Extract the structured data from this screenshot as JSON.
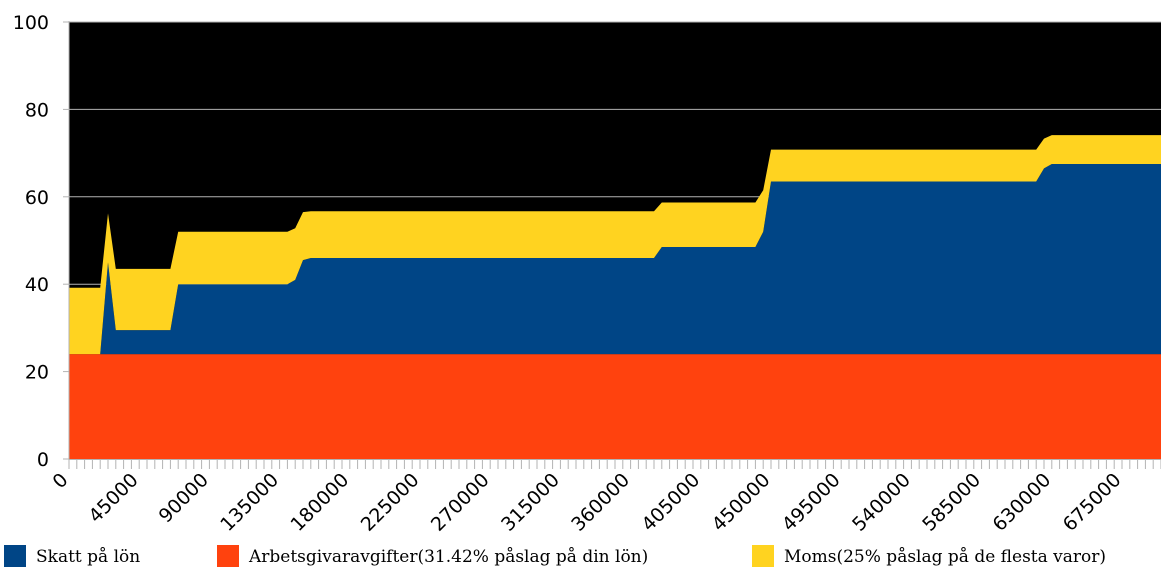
{
  "chart_data": {
    "type": "area",
    "stacked": true,
    "title": "",
    "xlabel": "",
    "ylabel": "",
    "ylim": [
      0,
      100
    ],
    "xlim": [
      0,
      700000
    ],
    "yticks": [
      0,
      20,
      40,
      60,
      80,
      100
    ],
    "xticks": [
      0,
      45000,
      90000,
      135000,
      180000,
      225000,
      270000,
      315000,
      360000,
      405000,
      450000,
      495000,
      540000,
      585000,
      630000,
      675000
    ],
    "x_minor_step": 5000,
    "grid": true,
    "plot_background": "#000000",
    "grid_color": "#b3b3b3",
    "legend_position": "bottom",
    "x": [
      0,
      5000,
      10000,
      15000,
      20000,
      25000,
      30000,
      35000,
      40000,
      45000,
      50000,
      55000,
      60000,
      65000,
      70000,
      75000,
      80000,
      85000,
      90000,
      95000,
      100000,
      105000,
      110000,
      115000,
      120000,
      125000,
      130000,
      135000,
      140000,
      145000,
      150000,
      155000,
      160000,
      165000,
      170000,
      175000,
      180000,
      185000,
      190000,
      195000,
      200000,
      205000,
      210000,
      215000,
      220000,
      225000,
      230000,
      235000,
      240000,
      245000,
      250000,
      255000,
      260000,
      265000,
      270000,
      275000,
      280000,
      285000,
      290000,
      295000,
      300000,
      305000,
      310000,
      315000,
      320000,
      325000,
      330000,
      335000,
      340000,
      345000,
      350000,
      355000,
      360000,
      365000,
      370000,
      375000,
      380000,
      385000,
      390000,
      395000,
      400000,
      405000,
      410000,
      415000,
      420000,
      425000,
      430000,
      435000,
      440000,
      445000,
      450000,
      455000,
      460000,
      465000,
      470000,
      475000,
      480000,
      485000,
      490000,
      495000,
      500000,
      505000,
      510000,
      515000,
      520000,
      525000,
      530000,
      535000,
      540000,
      545000,
      550000,
      555000,
      560000,
      565000,
      570000,
      575000,
      580000,
      585000,
      590000,
      595000,
      600000,
      605000,
      610000,
      615000,
      620000,
      625000,
      630000,
      635000,
      640000,
      645000,
      650000,
      655000,
      660000,
      665000,
      670000,
      675000,
      680000,
      685000,
      690000,
      695000,
      700000
    ],
    "series": [
      {
        "name": "Arbetsgivaravgifter(31.42% påslag på din lön)",
        "color": "#ff420e",
        "values": [
          24,
          24,
          24,
          24,
          24,
          24,
          24,
          24,
          24,
          24,
          24,
          24,
          24,
          24,
          24,
          24,
          24,
          24,
          24,
          24,
          24,
          24,
          24,
          24,
          24,
          24,
          24,
          24,
          24,
          24,
          24,
          24,
          24,
          24,
          24,
          24,
          24,
          24,
          24,
          24,
          24,
          24,
          24,
          24,
          24,
          24,
          24,
          24,
          24,
          24,
          24,
          24,
          24,
          24,
          24,
          24,
          24,
          24,
          24,
          24,
          24,
          24,
          24,
          24,
          24,
          24,
          24,
          24,
          24,
          24,
          24,
          24,
          24,
          24,
          24,
          24,
          24,
          24,
          24,
          24,
          24,
          24,
          24,
          24,
          24,
          24,
          24,
          24,
          24,
          24,
          24,
          24,
          24,
          24,
          24,
          24,
          24,
          24,
          24,
          24,
          24,
          24,
          24,
          24,
          24,
          24,
          24,
          24,
          24,
          24,
          24,
          24,
          24,
          24,
          24,
          24,
          24,
          24,
          24,
          24,
          24,
          24,
          24,
          24,
          24,
          24,
          24,
          24,
          24,
          24,
          24,
          24,
          24,
          24,
          24,
          24,
          24,
          24,
          24,
          24,
          24
        ]
      },
      {
        "name": "Skatt på lön",
        "color": "#004586",
        "values": [
          0,
          0,
          0,
          0,
          0,
          21,
          5.5,
          5.5,
          5.5,
          5.5,
          5.5,
          5.5,
          5.5,
          5.5,
          16,
          16,
          16,
          16,
          16,
          16,
          16,
          16,
          16,
          16,
          16,
          16,
          16,
          16,
          16,
          17,
          21.5,
          22,
          22,
          22,
          22,
          22,
          22,
          22,
          22,
          22,
          22,
          22,
          22,
          22,
          22,
          22,
          22,
          22,
          22,
          22,
          22,
          22,
          22,
          22,
          22,
          22,
          22,
          22,
          22,
          22,
          22,
          22,
          22,
          22,
          22,
          22,
          22,
          22,
          22,
          22,
          22,
          22,
          22,
          22,
          22,
          22,
          24.5,
          24.5,
          24.5,
          24.5,
          24.5,
          24.5,
          24.5,
          24.5,
          24.5,
          24.5,
          24.5,
          24.5,
          24.5,
          28,
          39.5,
          39.5,
          39.5,
          39.5,
          39.5,
          39.5,
          39.5,
          39.5,
          39.5,
          39.5,
          39.5,
          39.5,
          39.5,
          39.5,
          39.5,
          39.5,
          39.5,
          39.5,
          39.5,
          39.5,
          39.5,
          39.5,
          39.5,
          39.5,
          39.5,
          39.5,
          39.5,
          39.5,
          39.5,
          39.5,
          39.5,
          39.5,
          39.5,
          39.5,
          39.5,
          42.5,
          43.5,
          43.5,
          43.5,
          43.5,
          43.5,
          43.5,
          43.5,
          43.5,
          43.5,
          43.5,
          43.5,
          43.5,
          43.5,
          43.5,
          43.5
        ]
      },
      {
        "name": "Moms(25% påslag på de flesta varor)",
        "color": "#ffd320",
        "values": [
          15.2,
          15.2,
          15.2,
          15.2,
          15.2,
          11.2,
          14,
          14,
          14,
          14,
          14,
          14,
          14,
          14,
          12,
          12,
          12,
          12,
          12,
          12,
          12,
          12,
          12,
          12,
          12,
          12,
          12,
          12,
          12,
          11.8,
          11,
          10.7,
          10.7,
          10.7,
          10.7,
          10.7,
          10.7,
          10.7,
          10.7,
          10.7,
          10.7,
          10.7,
          10.7,
          10.7,
          10.7,
          10.7,
          10.7,
          10.7,
          10.7,
          10.7,
          10.7,
          10.7,
          10.7,
          10.7,
          10.7,
          10.7,
          10.7,
          10.7,
          10.7,
          10.7,
          10.7,
          10.7,
          10.7,
          10.7,
          10.7,
          10.7,
          10.7,
          10.7,
          10.7,
          10.7,
          10.7,
          10.7,
          10.7,
          10.7,
          10.7,
          10.7,
          10.2,
          10.2,
          10.2,
          10.2,
          10.2,
          10.2,
          10.2,
          10.2,
          10.2,
          10.2,
          10.2,
          10.2,
          10.2,
          9.5,
          7.3,
          7.3,
          7.3,
          7.3,
          7.3,
          7.3,
          7.3,
          7.3,
          7.3,
          7.3,
          7.3,
          7.3,
          7.3,
          7.3,
          7.3,
          7.3,
          7.3,
          7.3,
          7.3,
          7.3,
          7.3,
          7.3,
          7.3,
          7.3,
          7.3,
          7.3,
          7.3,
          7.3,
          7.3,
          7.3,
          7.3,
          7.3,
          7.3,
          7.3,
          7.3,
          6.8,
          6.6,
          6.6,
          6.6,
          6.6,
          6.6,
          6.6,
          6.6,
          6.6,
          6.6,
          6.6,
          6.6,
          6.6,
          6.6,
          6.6,
          6.6
        ]
      }
    ],
    "legend": [
      {
        "label": "Skatt på lön",
        "color": "#004586"
      },
      {
        "label": "Arbetsgivaravgifter(31.42% påslag på din lön)",
        "color": "#ff420e"
      },
      {
        "label": "Moms(25% påslag på de flesta varor)",
        "color": "#ffd320"
      }
    ]
  }
}
